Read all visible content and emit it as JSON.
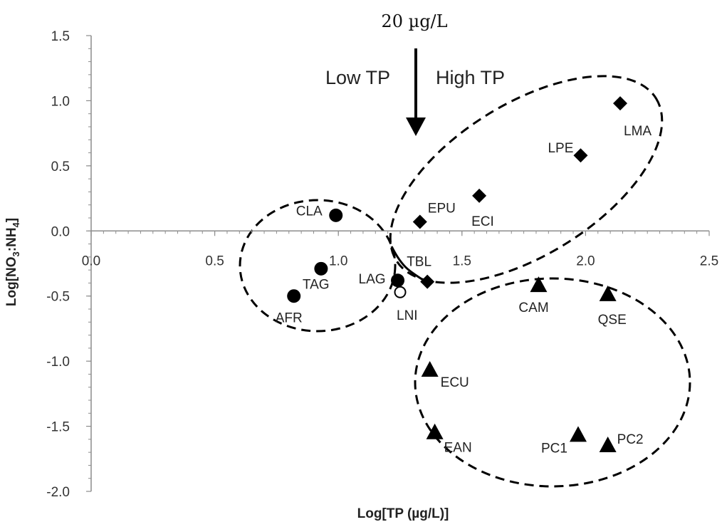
{
  "chart_data": {
    "type": "scatter",
    "xlabel": "Log[TP (µg/L)]",
    "ylabel_parts": [
      "Log[NO",
      "3",
      ":NH",
      "4",
      "]"
    ],
    "xlim": [
      0.0,
      2.5
    ],
    "ylim": [
      -2.0,
      1.5
    ],
    "x_ticks": [
      0.0,
      0.5,
      1.0,
      1.5,
      2.0,
      2.5
    ],
    "x_tick_labels": [
      "0.0",
      "0.5",
      "1.0",
      "1.5",
      "2.0",
      "2.5"
    ],
    "y_ticks": [
      -2.0,
      -1.5,
      -1.0,
      -0.5,
      0.0,
      0.5,
      1.0,
      1.5
    ],
    "y_tick_labels": [
      "-2.0",
      "-1.5",
      "-1.0",
      "-0.5",
      "0.0",
      "0.5",
      "1.0",
      "1.5"
    ],
    "grid": false,
    "legend": "none",
    "annotations": {
      "threshold": "20 µg/L",
      "low": "Low TP",
      "high": "High TP"
    },
    "colors": {
      "marker": "#000000",
      "axis": "#8c8c8c"
    },
    "series": [
      {
        "marker": "circle",
        "points": [
          {
            "label": "CLA",
            "x": 0.99,
            "y": 0.12
          },
          {
            "label": "TAG",
            "x": 0.93,
            "y": -0.29
          },
          {
            "label": "AFR",
            "x": 0.82,
            "y": -0.5
          },
          {
            "label": "LAG",
            "x": 1.24,
            "y": -0.38
          }
        ]
      },
      {
        "marker": "open-circle",
        "points": [
          {
            "label": "LNI",
            "x": 1.25,
            "y": -0.47
          }
        ]
      },
      {
        "marker": "diamond",
        "points": [
          {
            "label": "EPU",
            "x": 1.33,
            "y": 0.07
          },
          {
            "label": "ECI",
            "x": 1.57,
            "y": 0.27
          },
          {
            "label": "LPE",
            "x": 1.98,
            "y": 0.58
          },
          {
            "label": "LMA",
            "x": 2.14,
            "y": 0.98
          },
          {
            "label": "TBL",
            "x": 1.36,
            "y": -0.39
          }
        ]
      },
      {
        "marker": "triangle",
        "points": [
          {
            "label": "CAM",
            "x": 1.81,
            "y": -0.42
          },
          {
            "label": "QSE",
            "x": 2.09,
            "y": -0.49
          },
          {
            "label": "ECU",
            "x": 1.37,
            "y": -1.07
          },
          {
            "label": "EAN",
            "x": 1.39,
            "y": -1.55
          },
          {
            "label": "PC1",
            "x": 1.97,
            "y": -1.57
          },
          {
            "label": "PC2",
            "x": 2.09,
            "y": -1.65
          }
        ]
      }
    ]
  }
}
